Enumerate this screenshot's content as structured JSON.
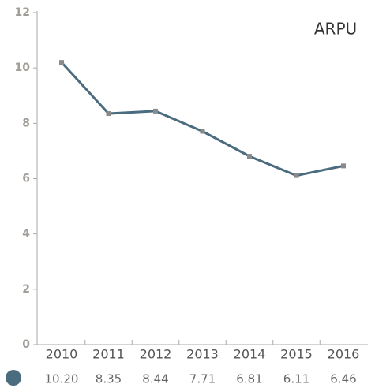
{
  "chart_data": {
    "type": "line",
    "title": "ARPU",
    "categories": [
      "2010",
      "2011",
      "2012",
      "2013",
      "2014",
      "2015",
      "2016"
    ],
    "values": [
      10.2,
      8.35,
      8.44,
      7.71,
      6.81,
      6.11,
      6.46
    ],
    "value_labels": [
      "10.20",
      "8.35",
      "8.44",
      "7.71",
      "6.81",
      "6.11",
      "6.46"
    ],
    "color": "#4b6b7e",
    "marker_color": "#8a8a8a",
    "ylim": [
      0,
      12
    ],
    "yticks": [
      0,
      2,
      4,
      6,
      8,
      10,
      12
    ]
  }
}
